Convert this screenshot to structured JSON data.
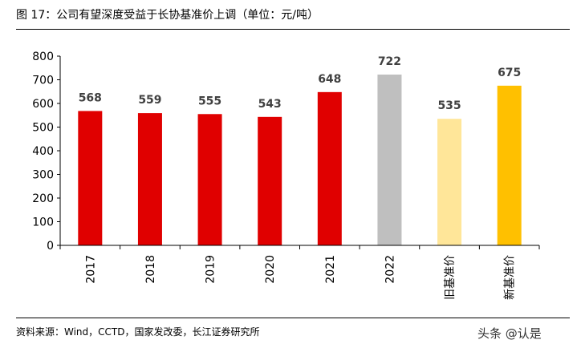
{
  "header": {
    "title": "图 17：公司有望深度受益于长协基准价上调（单位：元/吨）"
  },
  "footer": {
    "source": "资料来源：Wind，CCTD，国家发改委，长江证券研究所",
    "watermark": "头条 @认是"
  },
  "colors": {
    "historical": "#E00000",
    "forecast_2022": "#BFBFBF",
    "old_benchmark": "#FFE699",
    "new_benchmark": "#FFC000"
  },
  "chart_data": {
    "type": "bar",
    "title": "公司有望深度受益于长协基准价上调（单位：元/吨）",
    "xlabel": "",
    "ylabel": "",
    "ylim": [
      0,
      800
    ],
    "yticks": [
      0,
      100,
      200,
      300,
      400,
      500,
      600,
      700,
      800
    ],
    "categories": [
      "2017",
      "2018",
      "2019",
      "2020",
      "2021",
      "2022",
      "旧基准价",
      "新基准价"
    ],
    "values": [
      568,
      559,
      555,
      543,
      648,
      722,
      535,
      675
    ],
    "bar_colors": [
      "#E00000",
      "#E00000",
      "#E00000",
      "#E00000",
      "#E00000",
      "#BFBFBF",
      "#FFE699",
      "#FFC000"
    ],
    "data_labels": [
      "568",
      "559",
      "555",
      "543",
      "648",
      "722",
      "535",
      "675"
    ],
    "grid": false,
    "legend": "none"
  }
}
